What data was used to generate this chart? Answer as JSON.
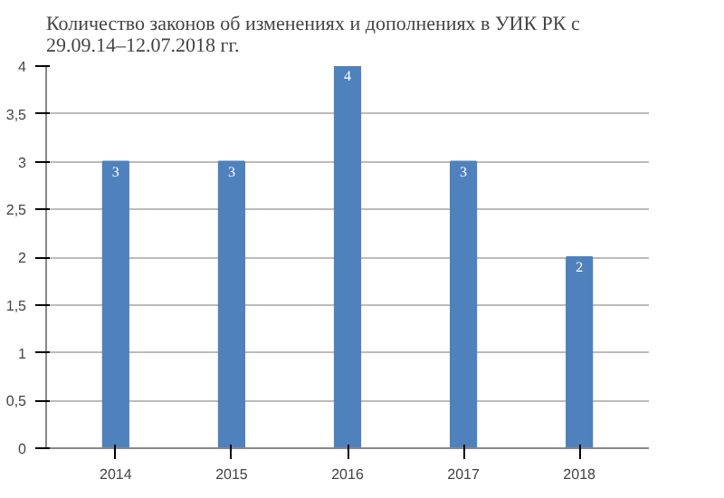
{
  "chart_data": {
    "type": "bar",
    "title": "Количество законов об изменениях и дополнениях в УИК РК с 29.09.14–12.07.2018 гг.",
    "categories": [
      "2014",
      "2015",
      "2016",
      "2017",
      "2018"
    ],
    "values": [
      3,
      3,
      4,
      3,
      2
    ],
    "color": "#4f81bd",
    "ylim": [
      0,
      4
    ],
    "yticks": [
      0,
      {
        "value": 0.5,
        "label": "0,5"
      },
      1,
      {
        "value": 1.5,
        "label": "1,5"
      },
      2,
      {
        "value": 2.5,
        "label": "2,5"
      },
      3,
      {
        "value": 3.5,
        "label": "3,5"
      },
      4
    ],
    "grid": "y",
    "data_labels": true
  }
}
